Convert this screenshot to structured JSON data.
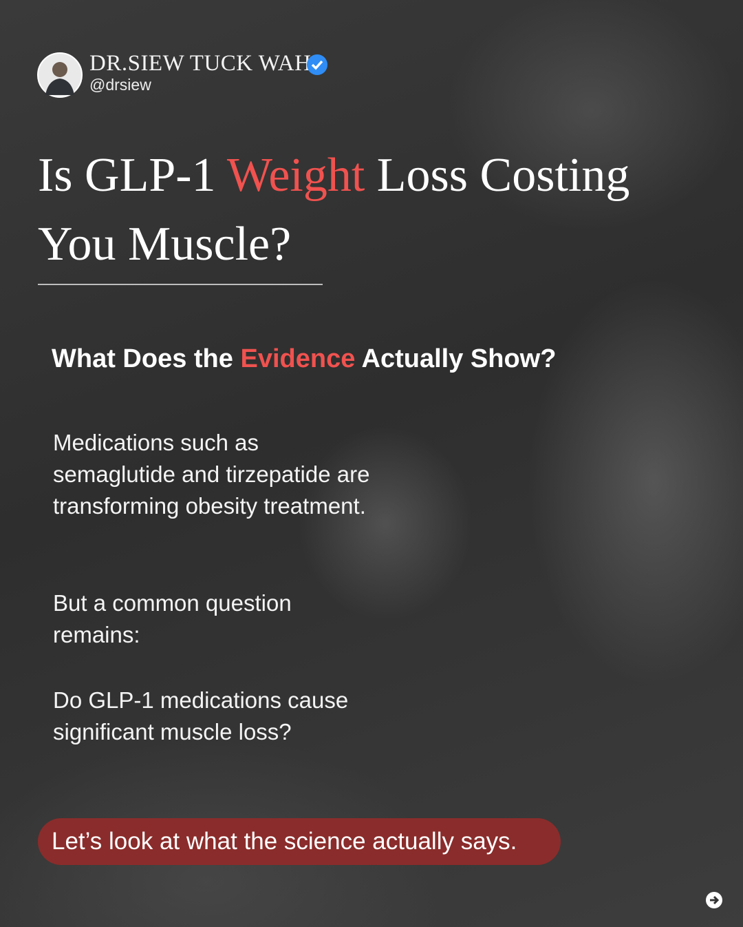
{
  "profile": {
    "name": "DR.SIEW TUCK WAH",
    "handle": "@drsiew"
  },
  "title": {
    "parts": [
      "Is GLP-1",
      "Weight",
      "Loss Costing You Muscle?"
    ]
  },
  "subtitle": {
    "parts": [
      "What Does the",
      "Evidence",
      "Actually Show?"
    ]
  },
  "paragraphs": [
    "Medications such as semaglutide and tirzepatide are transforming obesity treatment.",
    "But a common question remains:",
    "Do GLP-1 medications cause significant muscle loss?"
  ],
  "callout": "Let’s look at what the science actually says."
}
